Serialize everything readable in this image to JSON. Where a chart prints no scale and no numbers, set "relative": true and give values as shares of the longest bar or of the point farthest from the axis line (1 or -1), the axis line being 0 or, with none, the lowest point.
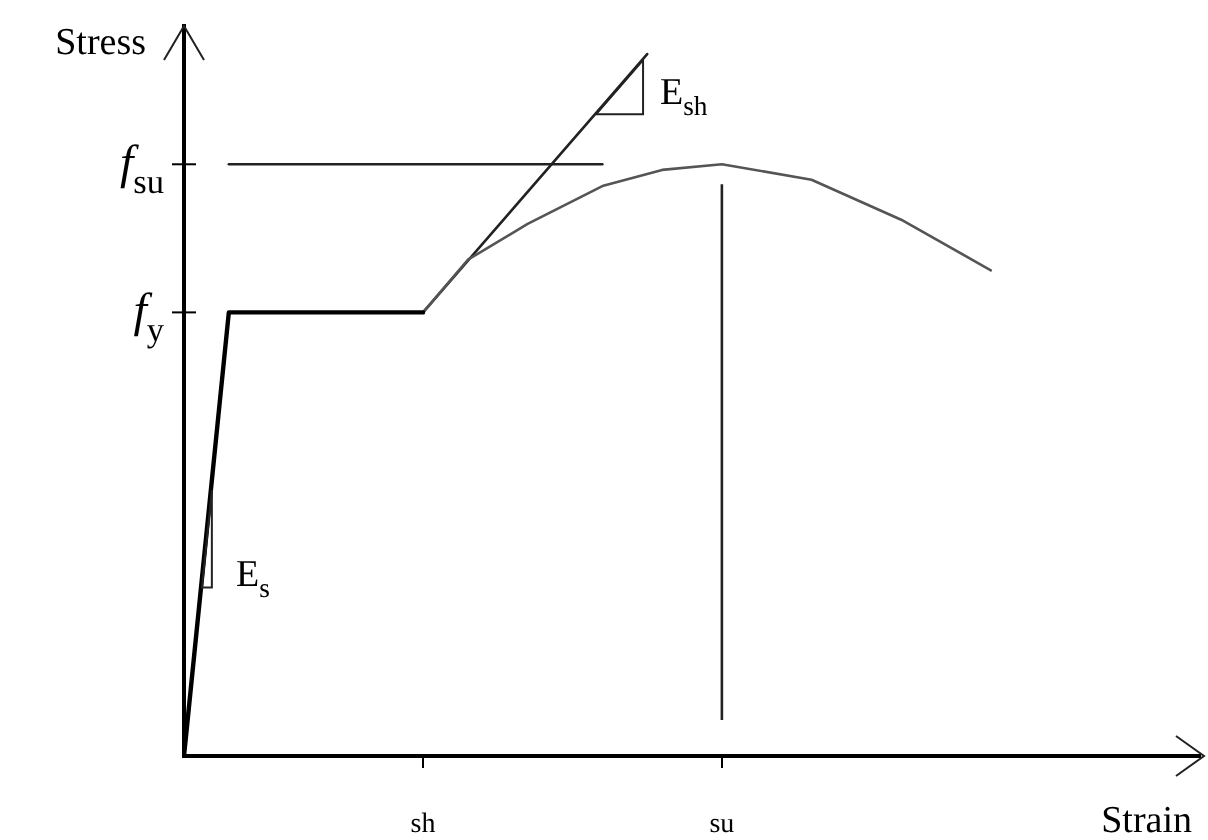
{
  "chart_data": {
    "type": "line",
    "xlabel": "Strain",
    "ylabel": "Stress",
    "relative": true,
    "categories": [
      null,
      null,
      null,
      null,
      null,
      null,
      null,
      null,
      null,
      null,
      null,
      null,
      null,
      null,
      null,
      null,
      "sh",
      null,
      null,
      null,
      null,
      null,
      null,
      null,
      null,
      null,
      null,
      null,
      null,
      null,
      null,
      null,
      null,
      null,
      null,
      null,
      "su",
      null,
      null,
      null,
      null,
      null,
      null,
      null,
      null,
      null,
      null,
      null,
      null,
      null,
      null,
      null,
      null,
      null,
      null,
      null,
      null,
      null,
      null,
      null,
      null,
      null,
      null,
      null,
      null,
      null,
      null,
      null,
      null
    ],
    "series": [
      {
        "color": "#000000",
        "values": [
          0,
          null,
          null,
          0.632,
          null,
          null,
          null,
          null,
          null,
          null,
          null,
          null,
          null,
          null,
          null,
          null,
          0.632,
          null,
          null,
          null,
          null,
          null,
          null,
          null,
          null,
          null,
          null,
          null,
          null,
          null,
          null,
          null,
          null,
          null,
          null,
          null,
          null,
          null,
          null,
          null,
          null,
          null,
          null,
          null,
          null,
          null,
          null,
          null,
          null,
          null,
          null,
          null,
          null,
          null,
          null,
          null,
          null,
          null,
          null,
          null,
          null,
          null,
          null,
          null,
          null,
          null,
          null,
          null,
          null
        ]
      },
      {
        "color": "#555555",
        "values": [
          null,
          null,
          null,
          null,
          null,
          null,
          null,
          null,
          null,
          null,
          null,
          null,
          null,
          null,
          null,
          null,
          0.632,
          null,
          null,
          0.707,
          null,
          null,
          null,
          0.758,
          null,
          null,
          null,
          null,
          0.812,
          null,
          null,
          null,
          0.835,
          null,
          null,
          null,
          0.843,
          null,
          null,
          null,
          null,
          null,
          0.821,
          null,
          null,
          null,
          null,
          null,
          0.764,
          null,
          null,
          null,
          null,
          null,
          0.692,
          null,
          null,
          null,
          null,
          null,
          null,
          null,
          null,
          null,
          null,
          null,
          null,
          null,
          null
        ]
      },
      {
        "color": "#222222",
        "values": [
          null,
          null,
          null,
          null,
          null,
          null,
          null,
          null,
          null,
          null,
          null,
          null,
          null,
          null,
          null,
          null,
          0.632,
          null,
          null,
          null,
          null,
          null,
          null,
          null,
          null,
          null,
          null,
          null,
          null,
          null,
          null,
          1,
          null,
          null,
          null,
          null,
          null,
          null,
          null,
          null,
          null,
          null,
          null,
          null,
          null,
          null,
          null,
          null,
          null,
          null,
          null,
          null,
          null,
          null,
          null,
          null,
          null,
          null,
          null,
          null,
          null,
          null,
          null,
          null,
          null,
          null,
          null,
          null,
          null
        ]
      },
      {
        "color": "#222222",
        "values": [
          null,
          null,
          null,
          0.843,
          null,
          null,
          null,
          null,
          null,
          null,
          null,
          null,
          null,
          null,
          null,
          null,
          null,
          null,
          null,
          null,
          null,
          null,
          null,
          null,
          null,
          null,
          null,
          null,
          0.843,
          null,
          null,
          null,
          null,
          null,
          null,
          null,
          null,
          null,
          null,
          null,
          null,
          null,
          null,
          null,
          null,
          null,
          null,
          null,
          null,
          null,
          null,
          null,
          null,
          null,
          null,
          null,
          null,
          null,
          null,
          null,
          null,
          null,
          null,
          null,
          null,
          null,
          null,
          null,
          null
        ]
      }
    ],
    "ref_lines": [
      {
        "axis": "x",
        "value": "su",
        "color": "#222222"
      }
    ],
    "annotations": [
      "E$_{s}$",
      "E$_{sh}$",
      "f$_{su}$",
      "f$_{y}$"
    ],
    "legend": false
  }
}
